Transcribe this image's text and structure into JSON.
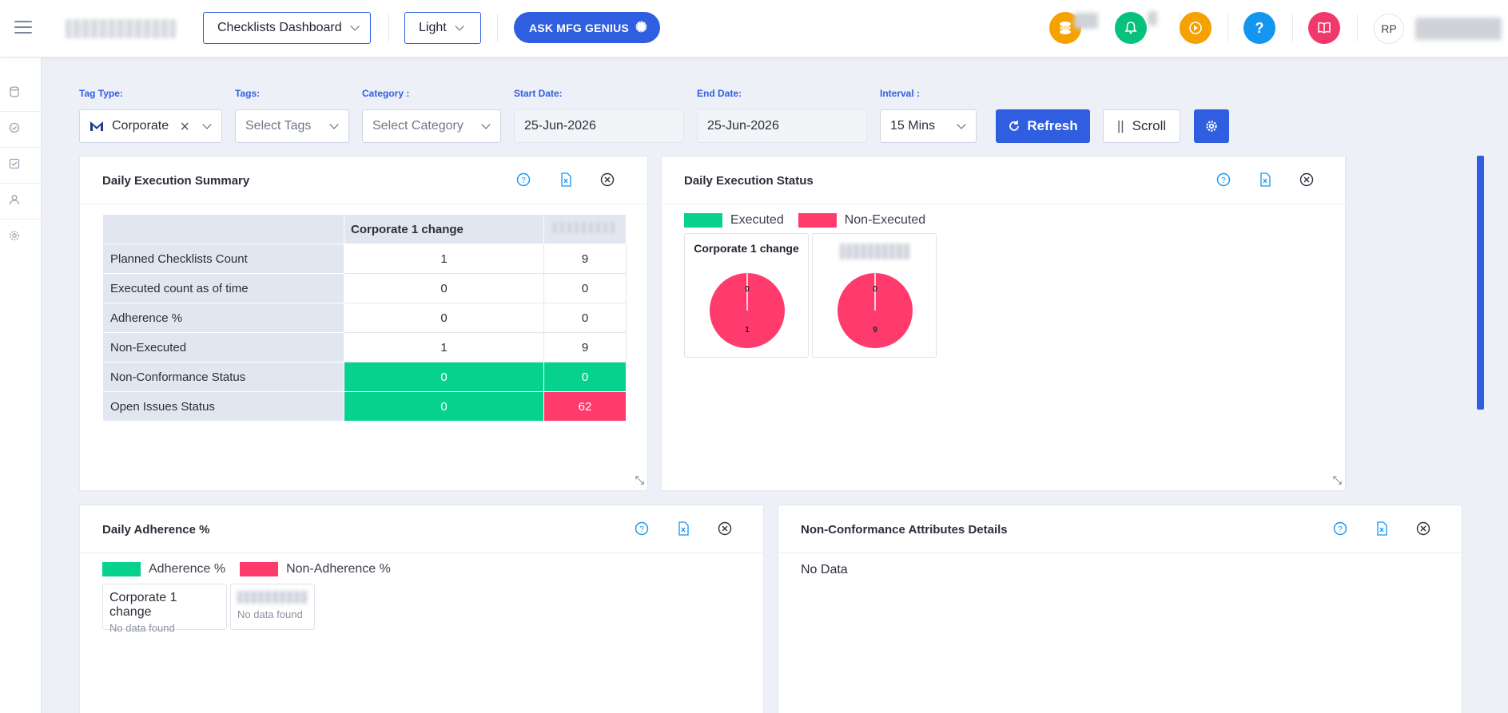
{
  "topbar": {
    "dashboard_select": "Checklists Dashboard",
    "theme_select": "Light",
    "ask_button": "ASK MFG GENIUS",
    "avatar_initials": "RP",
    "icon_colors": {
      "coins": "#f5a100",
      "bell": "#06c17c",
      "play": "#f5a100",
      "help": "#1296f0",
      "book": "#f0386a"
    }
  },
  "filters": {
    "tag_type": {
      "label": "Tag Type:",
      "value": "Corporate"
    },
    "tags": {
      "label": "Tags:",
      "placeholder": "Select Tags"
    },
    "category": {
      "label": "Category :",
      "placeholder": "Select Category"
    },
    "start_date": {
      "label": "Start Date:",
      "value": "25-Jun-2026"
    },
    "end_date": {
      "label": "End Date:",
      "value": "25-Jun-2026"
    },
    "interval": {
      "label": "Interval :",
      "value": "15 Mins"
    },
    "refresh_label": "Refresh",
    "scroll_label": "Scroll"
  },
  "summary": {
    "title": "Daily Execution Summary",
    "column_header": "Corporate 1 change",
    "rows": [
      {
        "label": "Planned Checklists Count",
        "a": "1",
        "b": "9"
      },
      {
        "label": "Executed count as of time",
        "a": "0",
        "b": "0"
      },
      {
        "label": "Adherence %",
        "a": "0",
        "b": "0"
      },
      {
        "label": "Non-Executed",
        "a": "1",
        "b": "9"
      },
      {
        "label": "Non-Conformance Status",
        "a": "0",
        "b": "0"
      },
      {
        "label": "Open Issues Status",
        "a": "0",
        "b": "62"
      }
    ]
  },
  "status": {
    "title": "Daily Execution Status",
    "legend": [
      "Executed",
      "Non-Executed"
    ],
    "pie_titles": [
      "Corporate 1 change"
    ],
    "chart_data": [
      {
        "type": "pie",
        "title": "Corporate 1 change",
        "labels": [
          "Executed",
          "Non-Executed"
        ],
        "values": [
          0,
          1
        ]
      },
      {
        "type": "pie",
        "title": "",
        "labels": [
          "Executed",
          "Non-Executed"
        ],
        "values": [
          0,
          9
        ]
      }
    ]
  },
  "adherence": {
    "title": "Daily Adherence %",
    "legend": [
      "Adherence %",
      "Non-Adherence %"
    ],
    "cards": [
      {
        "name": "Corporate 1 change",
        "note": "No data found"
      },
      {
        "name": "",
        "note": "No data found"
      }
    ]
  },
  "nonconf": {
    "title": "Non-Conformance Attributes Details",
    "empty_text": "No Data"
  },
  "colors": {
    "green": "#06d28d",
    "red": "#ff3b6e",
    "accent": "#2f5fe0"
  }
}
